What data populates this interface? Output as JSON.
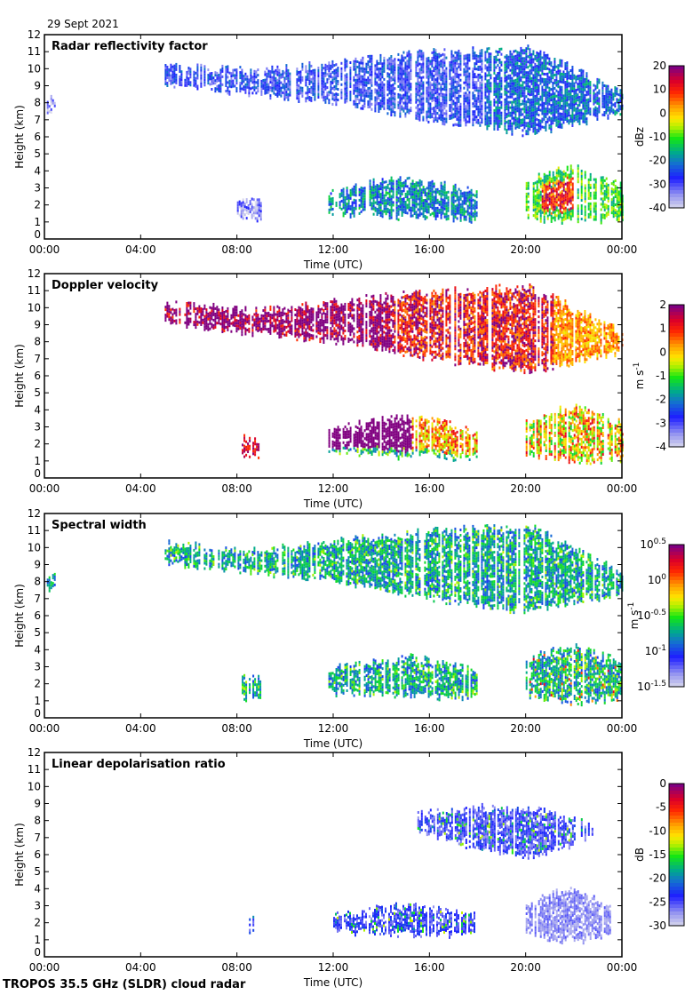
{
  "header": {
    "date": "29 Sept 2021"
  },
  "footer": {
    "instrument": "TROPOS 35.5 GHz (SLDR) cloud radar"
  },
  "chart_data": [
    {
      "type": "heatmap",
      "title": "Radar reflectivity factor",
      "xlabel": "Time (UTC)",
      "ylabel": "Height (km)",
      "x_ticks": [
        "00:00",
        "04:00",
        "08:00",
        "12:00",
        "16:00",
        "20:00",
        "00:00"
      ],
      "y_ticks": [
        "0",
        "1",
        "2",
        "3",
        "4",
        "5",
        "6",
        "7",
        "8",
        "9",
        "10",
        "11",
        "12"
      ],
      "xlim_hours": [
        0,
        24
      ],
      "ylim_km": [
        0,
        12
      ],
      "colorbar": {
        "label": "dBz",
        "ticks": [
          "20",
          "10",
          "0",
          "-10",
          "-20",
          "-30",
          "-40"
        ],
        "range": [
          -40,
          20
        ]
      },
      "palette": "reflectivity",
      "features": [
        {
          "name": "high-cloud",
          "t0": 5.0,
          "t1": 24.0,
          "base": [
            9.2,
            8.6,
            8.0,
            7.0,
            6.3,
            7.5
          ],
          "top": [
            10.2,
            9.8,
            10.4,
            11.0,
            11.2,
            8.5
          ],
          "intensity": 0.22
        },
        {
          "name": "early-fragment",
          "t0": 0.1,
          "t1": 0.4,
          "base": [
            7.6
          ],
          "top": [
            8.3
          ],
          "intensity": 0.1
        },
        {
          "name": "low-cloud-midday",
          "t0": 11.8,
          "t1": 18.0,
          "base": [
            1.6,
            1.4,
            1.2
          ],
          "top": [
            2.8,
            3.6,
            2.8
          ],
          "intensity": 0.35
        },
        {
          "name": "low-cloud-evening",
          "t0": 20.0,
          "t1": 24.0,
          "base": [
            1.4,
            1.0,
            1.2
          ],
          "top": [
            3.5,
            4.2,
            3.2
          ],
          "intensity": 0.5
        },
        {
          "name": "morning-patch",
          "t0": 8.0,
          "t1": 9.0,
          "base": [
            1.3
          ],
          "top": [
            2.3
          ],
          "intensity": 0.1
        }
      ]
    },
    {
      "type": "heatmap",
      "title": "Doppler velocity",
      "xlabel": "Time (UTC)",
      "ylabel": "Height (km)",
      "x_ticks": [
        "00:00",
        "04:00",
        "08:00",
        "12:00",
        "16:00",
        "20:00",
        "00:00"
      ],
      "y_ticks": [
        "0",
        "1",
        "2",
        "3",
        "4",
        "5",
        "6",
        "7",
        "8",
        "9",
        "10",
        "11",
        "12"
      ],
      "xlim_hours": [
        0,
        24
      ],
      "ylim_km": [
        0,
        12
      ],
      "colorbar": {
        "label": "m s-1",
        "label_main": "m s",
        "label_sup": "-1",
        "ticks": [
          "2",
          "1",
          "0",
          "-1",
          "-2",
          "-3",
          "-4"
        ],
        "range": [
          -4,
          2
        ]
      },
      "palette": "velocity",
      "features": [
        {
          "name": "high-cloud",
          "t0": 5.0,
          "t1": 24.0,
          "base": [
            9.2,
            8.6,
            8.0,
            7.0,
            6.3,
            7.5
          ],
          "top": [
            10.2,
            9.8,
            10.4,
            11.0,
            11.2,
            8.5
          ],
          "intensity": 0.85
        },
        {
          "name": "low-cloud-midday",
          "t0": 11.8,
          "t1": 18.0,
          "base": [
            1.6,
            1.4,
            1.2
          ],
          "top": [
            2.8,
            3.6,
            2.8
          ],
          "intensity": 0.7
        },
        {
          "name": "low-cloud-evening",
          "t0": 20.0,
          "t1": 24.0,
          "base": [
            1.4,
            1.0,
            1.2
          ],
          "top": [
            3.5,
            4.2,
            3.2
          ],
          "intensity": 0.6
        },
        {
          "name": "morning-patch",
          "t0": 8.2,
          "t1": 9.0,
          "base": [
            1.3
          ],
          "top": [
            2.3
          ],
          "intensity": 0.9
        }
      ]
    },
    {
      "type": "heatmap",
      "title": "Spectral width",
      "xlabel": "Time (UTC)",
      "ylabel": "Height (km)",
      "x_ticks": [
        "00:00",
        "04:00",
        "08:00",
        "12:00",
        "16:00",
        "20:00",
        "00:00"
      ],
      "y_ticks": [
        "0",
        "1",
        "2",
        "3",
        "4",
        "5",
        "6",
        "7",
        "8",
        "9",
        "10",
        "11",
        "12"
      ],
      "xlim_hours": [
        0,
        24
      ],
      "ylim_km": [
        0,
        12
      ],
      "colorbar": {
        "label": "m s-1",
        "label_main": "m s",
        "label_sup": "-1",
        "ticks": [
          "10^0.5",
          "10^0",
          "10^-0.5",
          "10^-1",
          "10^-1.5"
        ],
        "tick_exponents": [
          "0.5",
          "0",
          "-0.5",
          "-1",
          "-1.5"
        ],
        "range_log10": [
          -1.5,
          0.5
        ]
      },
      "palette": "width",
      "features": [
        {
          "name": "high-cloud",
          "t0": 5.0,
          "t1": 24.0,
          "base": [
            9.2,
            8.6,
            8.0,
            7.0,
            6.3,
            7.5
          ],
          "top": [
            10.2,
            9.8,
            10.4,
            11.0,
            11.2,
            8.5
          ],
          "intensity": 0.35
        },
        {
          "name": "early-fragment",
          "t0": 0.1,
          "t1": 0.4,
          "base": [
            7.6
          ],
          "top": [
            8.3
          ],
          "intensity": 0.25
        },
        {
          "name": "low-cloud-midday",
          "t0": 11.8,
          "t1": 18.0,
          "base": [
            1.6,
            1.4,
            1.2
          ],
          "top": [
            2.8,
            3.6,
            2.8
          ],
          "intensity": 0.45
        },
        {
          "name": "low-cloud-evening",
          "t0": 20.0,
          "t1": 24.0,
          "base": [
            1.4,
            1.0,
            1.2
          ],
          "top": [
            3.5,
            4.2,
            3.2
          ],
          "intensity": 0.55
        },
        {
          "name": "morning-patch",
          "t0": 8.2,
          "t1": 9.0,
          "base": [
            1.3
          ],
          "top": [
            2.3
          ],
          "intensity": 0.45
        }
      ]
    },
    {
      "type": "heatmap",
      "title": "Linear depolarisation ratio",
      "xlabel": "Time (UTC)",
      "ylabel": "Height (km)",
      "x_ticks": [
        "00:00",
        "04:00",
        "08:00",
        "12:00",
        "16:00",
        "20:00",
        "00:00"
      ],
      "y_ticks": [
        "0",
        "1",
        "2",
        "3",
        "4",
        "5",
        "6",
        "7",
        "8",
        "9",
        "10",
        "11",
        "12"
      ],
      "xlim_hours": [
        0,
        24
      ],
      "ylim_km": [
        0,
        12
      ],
      "colorbar": {
        "label": "dB",
        "ticks": [
          "0",
          "-5",
          "-10",
          "-15",
          "-20",
          "-25",
          "-30"
        ],
        "range": [
          -30,
          0
        ]
      },
      "palette": "ldr",
      "features": [
        {
          "name": "high-cloud",
          "t0": 15.5,
          "t1": 22.8,
          "base": [
            7.5,
            6.5,
            6.0,
            7.0
          ],
          "top": [
            8.3,
            8.8,
            8.6,
            7.8
          ],
          "intensity": 0.25
        },
        {
          "name": "low-cloud-midday",
          "t0": 12.0,
          "t1": 17.9,
          "base": [
            1.6,
            1.4,
            1.4
          ],
          "top": [
            2.4,
            3.0,
            2.4
          ],
          "intensity": 0.15
        },
        {
          "name": "low-cloud-evening",
          "t0": 20.0,
          "t1": 23.5,
          "base": [
            1.4,
            1.0,
            1.3
          ],
          "top": [
            3.0,
            4.0,
            3.0
          ],
          "intensity": 0.1
        },
        {
          "name": "morning-patch",
          "t0": 8.5,
          "t1": 8.7,
          "base": [
            1.3
          ],
          "top": [
            2.2
          ],
          "intensity": 0.3
        }
      ]
    }
  ]
}
